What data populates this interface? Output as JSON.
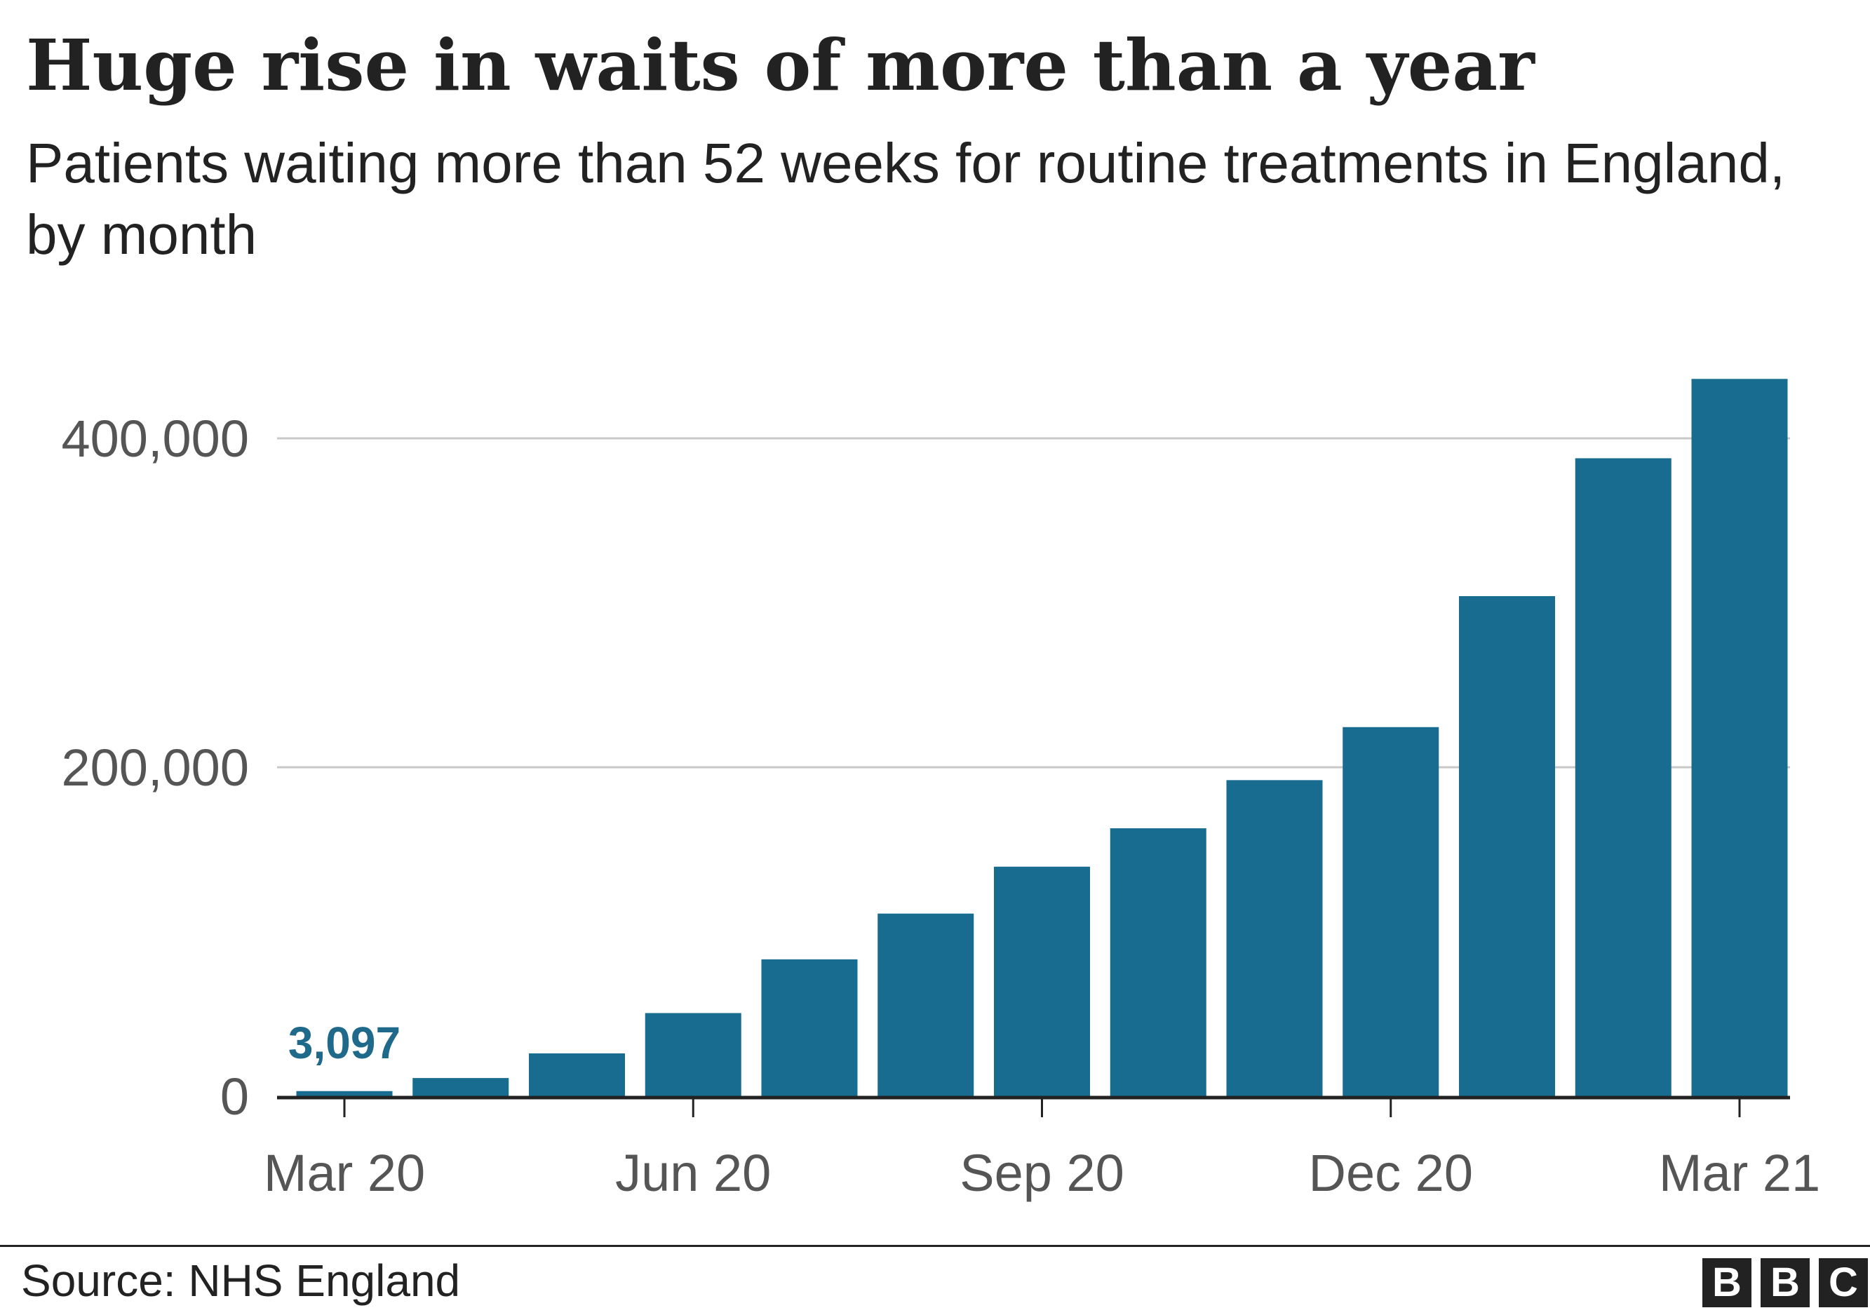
{
  "header": {
    "title": "Huge rise in waits of more than a year",
    "subtitle": "Patients waiting more than 52 weeks for routine treatments in England, by month"
  },
  "footer": {
    "source": "Source: NHS England",
    "logo_letters": [
      "B",
      "B",
      "C"
    ]
  },
  "colors": {
    "bar": "#176C8F",
    "data_label": "#1F6A8A",
    "gridline": "#C8C8C8",
    "axis": "#222222",
    "tick_text": "#555555"
  },
  "chart_data": {
    "type": "bar",
    "title": "Huge rise in waits of more than a year",
    "subtitle": "Patients waiting more than 52 weeks for routine treatments in England, by month",
    "categories": [
      "Mar 20",
      "Apr 20",
      "May 20",
      "Jun 20",
      "Jul 20",
      "Aug 20",
      "Sep 20",
      "Oct 20",
      "Nov 20",
      "Dec 20",
      "Jan 21",
      "Feb 21",
      "Mar 21"
    ],
    "values": [
      3097,
      11042,
      26029,
      50536,
      83203,
      111026,
      139545,
      162888,
      192169,
      224407,
      304044,
      387885,
      436127
    ],
    "x_tick_labels": [
      "Mar 20",
      "Jun 20",
      "Sep 20",
      "Dec 20",
      "Mar 21"
    ],
    "y_ticks": [
      0,
      200000,
      400000
    ],
    "y_tick_labels": [
      "0",
      "200,000",
      "400,000"
    ],
    "ylim": [
      0,
      450000
    ],
    "grid": true,
    "xlabel": "",
    "ylabel": "",
    "annotations": [
      {
        "category": "Mar 20",
        "text": "3,097"
      }
    ]
  }
}
